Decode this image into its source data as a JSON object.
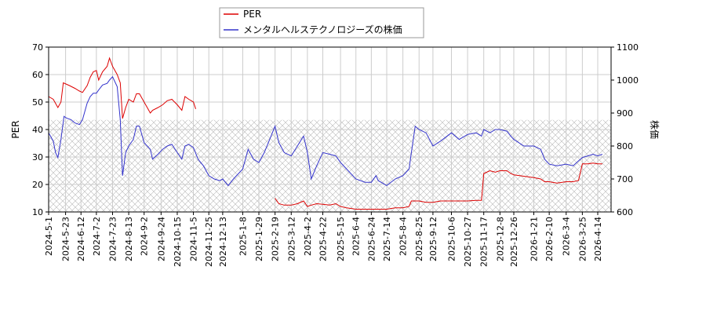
{
  "chart_data": {
    "type": "line",
    "legend": {
      "placement": "top-center",
      "entries": [
        {
          "label": "PER",
          "color": "#dd0000"
        },
        {
          "label": "メンタルヘルステクノロジーズの株価",
          "color": "#3333cc"
        }
      ]
    },
    "ylabel_left": "PER",
    "ylabel_right": "株価",
    "ylim_left": [
      10,
      70
    ],
    "ylim_right": [
      600,
      1100
    ],
    "yticks_left": [
      "10",
      "20",
      "30",
      "40",
      "50",
      "60",
      "70"
    ],
    "yticks_right": [
      "600",
      "700",
      "800",
      "900",
      "1000",
      "1100"
    ],
    "xticks": [
      "2024-5-1",
      "2024-5-23",
      "2024-6-12",
      "2024-7-2",
      "2024-7-23",
      "2024-8-13",
      "2024-9-2",
      "2024-9-24",
      "2024-10-15",
      "2024-11-5",
      "2024-11-25",
      "2024-12-13",
      "2025-1-8",
      "2025-1-29",
      "2025-2-19",
      "2025-3-12",
      "2025-4-2",
      "2025-4-22",
      "2025-5-15",
      "2025-6-4",
      "2025-6-24",
      "2025-7-14",
      "2025-8-4",
      "2025-8-25",
      "2025-9-12",
      "2025-10-6",
      "2025-10-27",
      "2025-11-17",
      "2025-12-8",
      "2025-12-26",
      "2026-1-21",
      "2026-2-10",
      "2026-3-4",
      "2026-3-25",
      "2026-4-14"
    ],
    "grid": true,
    "hatched_band_left": [
      10,
      43.5
    ],
    "series": [
      {
        "name": "PER",
        "axis": "left",
        "color": "#dd0000",
        "segments": [
          [
            [
              "2024-5-1",
              52
            ],
            [
              "2024-5-7",
              51
            ],
            [
              "2024-5-13",
              48
            ],
            [
              "2024-5-17",
              50
            ],
            [
              "2024-5-20",
              57
            ],
            [
              "2024-5-28",
              56
            ],
            [
              "2024-6-4",
              55
            ],
            [
              "2024-6-10",
              54
            ],
            [
              "2024-6-14",
              53.5
            ],
            [
              "2024-6-20",
              56
            ],
            [
              "2024-6-24",
              59
            ],
            [
              "2024-6-28",
              61
            ],
            [
              "2024-7-2",
              61.5
            ],
            [
              "2024-7-5",
              58
            ],
            [
              "2024-7-10",
              61
            ],
            [
              "2024-7-16",
              63
            ],
            [
              "2024-7-19",
              66
            ],
            [
              "2024-7-23",
              63
            ],
            [
              "2024-7-29",
              60
            ],
            [
              "2024-8-2",
              57
            ],
            [
              "2024-8-5",
              44
            ],
            [
              "2024-8-9",
              48
            ],
            [
              "2024-8-13",
              51
            ],
            [
              "2024-8-19",
              50
            ],
            [
              "2024-8-23",
              53
            ],
            [
              "2024-8-27",
              53
            ],
            [
              "2024-9-2",
              50
            ],
            [
              "2024-9-6",
              48
            ],
            [
              "2024-9-10",
              46
            ],
            [
              "2024-9-13",
              47
            ],
            [
              "2024-9-20",
              48
            ],
            [
              "2024-9-26",
              49
            ],
            [
              "2024-10-2",
              50.5
            ],
            [
              "2024-10-8",
              51
            ],
            [
              "2024-10-15",
              49
            ],
            [
              "2024-10-21",
              47
            ],
            [
              "2024-10-25",
              52
            ],
            [
              "2024-10-30",
              51
            ],
            [
              "2024-11-5",
              50
            ],
            [
              "2024-11-8",
              47.5
            ]
          ],
          [
            [
              "2025-2-19",
              15
            ],
            [
              "2025-2-24",
              13
            ],
            [
              "2025-3-3",
              12.5
            ],
            [
              "2025-3-12",
              12.5
            ],
            [
              "2025-3-20",
              13
            ],
            [
              "2025-3-28",
              14
            ],
            [
              "2025-4-2",
              12
            ],
            [
              "2025-4-7",
              12.5
            ],
            [
              "2025-4-14",
              13
            ],
            [
              "2025-4-22",
              12.8
            ],
            [
              "2025-5-1",
              12.5
            ],
            [
              "2025-5-9",
              13
            ],
            [
              "2025-5-15",
              12
            ],
            [
              "2025-5-23",
              11.5
            ],
            [
              "2025-6-4",
              11
            ],
            [
              "2025-6-16",
              11
            ],
            [
              "2025-6-24",
              11
            ],
            [
              "2025-7-3",
              11
            ],
            [
              "2025-7-14",
              11
            ],
            [
              "2025-7-25",
              11.5
            ],
            [
              "2025-8-4",
              11.5
            ],
            [
              "2025-8-12",
              12
            ],
            [
              "2025-8-15",
              14
            ],
            [
              "2025-8-25",
              14
            ],
            [
              "2025-9-3",
              13.5
            ],
            [
              "2025-9-12",
              13.5
            ],
            [
              "2025-9-22",
              14
            ],
            [
              "2025-10-6",
              14
            ],
            [
              "2025-10-16",
              14
            ],
            [
              "2025-10-27",
              14
            ],
            [
              "2025-11-7",
              14.2
            ],
            [
              "2025-11-14",
              14.2
            ],
            [
              "2025-11-17",
              24
            ],
            [
              "2025-11-25",
              25
            ],
            [
              "2025-12-2",
              24.5
            ],
            [
              "2025-12-8",
              25
            ],
            [
              "2025-12-17",
              25
            ],
            [
              "2025-12-22",
              24
            ],
            [
              "2025-12-26",
              23.5
            ],
            [
              "2026-1-8",
              23
            ],
            [
              "2026-1-21",
              22.5
            ],
            [
              "2026-1-30",
              22
            ],
            [
              "2026-2-4",
              21
            ],
            [
              "2026-2-10",
              21
            ],
            [
              "2026-2-20",
              20.5
            ],
            [
              "2026-3-4",
              21
            ],
            [
              "2026-3-13",
              21
            ],
            [
              "2026-3-20",
              21.5
            ],
            [
              "2026-3-25",
              27.5
            ],
            [
              "2026-4-1",
              27.5
            ],
            [
              "2026-4-8",
              27.8
            ],
            [
              "2026-4-14",
              27.5
            ],
            [
              "2026-4-20",
              27.5
            ]
          ]
        ]
      },
      {
        "name": "メンタルヘルステクノロジーズの株価",
        "axis": "right",
        "color": "#3333cc",
        "points": [
          [
            "2024-5-1",
            840
          ],
          [
            "2024-5-7",
            815
          ],
          [
            "2024-5-10",
            780
          ],
          [
            "2024-5-13",
            765
          ],
          [
            "2024-5-17",
            820
          ],
          [
            "2024-5-21",
            890
          ],
          [
            "2024-5-24",
            885
          ],
          [
            "2024-5-30",
            880
          ],
          [
            "2024-6-4",
            870
          ],
          [
            "2024-6-10",
            865
          ],
          [
            "2024-6-14",
            880
          ],
          [
            "2024-6-20",
            930
          ],
          [
            "2024-6-24",
            950
          ],
          [
            "2024-6-28",
            960
          ],
          [
            "2024-7-2",
            960
          ],
          [
            "2024-7-5",
            970
          ],
          [
            "2024-7-10",
            985
          ],
          [
            "2024-7-16",
            990
          ],
          [
            "2024-7-19",
            1000
          ],
          [
            "2024-7-23",
            1010
          ],
          [
            "2024-7-29",
            980
          ],
          [
            "2024-8-2",
            880
          ],
          [
            "2024-8-5",
            710
          ],
          [
            "2024-8-9",
            780
          ],
          [
            "2024-8-13",
            800
          ],
          [
            "2024-8-19",
            820
          ],
          [
            "2024-8-23",
            860
          ],
          [
            "2024-8-27",
            860
          ],
          [
            "2024-9-2",
            810
          ],
          [
            "2024-9-6",
            800
          ],
          [
            "2024-9-10",
            790
          ],
          [
            "2024-9-13",
            760
          ],
          [
            "2024-9-20",
            775
          ],
          [
            "2024-9-26",
            790
          ],
          [
            "2024-10-2",
            800
          ],
          [
            "2024-10-8",
            805
          ],
          [
            "2024-10-15",
            780
          ],
          [
            "2024-10-21",
            760
          ],
          [
            "2024-10-25",
            800
          ],
          [
            "2024-10-30",
            805
          ],
          [
            "2024-11-5",
            795
          ],
          [
            "2024-11-11",
            760
          ],
          [
            "2024-11-18",
            740
          ],
          [
            "2024-11-25",
            710
          ],
          [
            "2024-12-2",
            700
          ],
          [
            "2024-12-9",
            695
          ],
          [
            "2024-12-13",
            700
          ],
          [
            "2024-12-20",
            680
          ],
          [
            "2024-12-27",
            700
          ],
          [
            "2025-1-8",
            730
          ],
          [
            "2025-1-15",
            790
          ],
          [
            "2025-1-22",
            760
          ],
          [
            "2025-1-29",
            750
          ],
          [
            "2025-2-5",
            780
          ],
          [
            "2025-2-12",
            820
          ],
          [
            "2025-2-19",
            860
          ],
          [
            "2025-2-24",
            810
          ],
          [
            "2025-3-3",
            780
          ],
          [
            "2025-3-12",
            770
          ],
          [
            "2025-3-20",
            800
          ],
          [
            "2025-3-28",
            830
          ],
          [
            "2025-4-2",
            780
          ],
          [
            "2025-4-7",
            700
          ],
          [
            "2025-4-14",
            740
          ],
          [
            "2025-4-22",
            780
          ],
          [
            "2025-5-1",
            775
          ],
          [
            "2025-5-9",
            770
          ],
          [
            "2025-5-15",
            750
          ],
          [
            "2025-5-23",
            730
          ],
          [
            "2025-6-4",
            700
          ],
          [
            "2025-6-16",
            690
          ],
          [
            "2025-6-24",
            690
          ],
          [
            "2025-6-30",
            710
          ],
          [
            "2025-7-3",
            695
          ],
          [
            "2025-7-14",
            680
          ],
          [
            "2025-7-25",
            700
          ],
          [
            "2025-8-4",
            710
          ],
          [
            "2025-8-12",
            730
          ],
          [
            "2025-8-15",
            780
          ],
          [
            "2025-8-20",
            860
          ],
          [
            "2025-8-25",
            850
          ],
          [
            "2025-9-3",
            840
          ],
          [
            "2025-9-12",
            800
          ],
          [
            "2025-9-22",
            815
          ],
          [
            "2025-10-6",
            840
          ],
          [
            "2025-10-16",
            820
          ],
          [
            "2025-10-27",
            835
          ],
          [
            "2025-11-7",
            840
          ],
          [
            "2025-11-14",
            830
          ],
          [
            "2025-11-17",
            850
          ],
          [
            "2025-11-25",
            840
          ],
          [
            "2025-12-2",
            850
          ],
          [
            "2025-12-8",
            850
          ],
          [
            "2025-12-17",
            845
          ],
          [
            "2025-12-22",
            830
          ],
          [
            "2025-12-26",
            820
          ],
          [
            "2026-1-8",
            800
          ],
          [
            "2026-1-21",
            800
          ],
          [
            "2026-1-30",
            790
          ],
          [
            "2026-2-4",
            760
          ],
          [
            "2026-2-10",
            745
          ],
          [
            "2026-2-20",
            740
          ],
          [
            "2026-3-4",
            745
          ],
          [
            "2026-3-13",
            740
          ],
          [
            "2026-3-20",
            755
          ],
          [
            "2026-3-25",
            765
          ],
          [
            "2026-4-1",
            770
          ],
          [
            "2026-4-8",
            775
          ],
          [
            "2026-4-14",
            770
          ],
          [
            "2026-4-20",
            775
          ]
        ]
      }
    ]
  }
}
